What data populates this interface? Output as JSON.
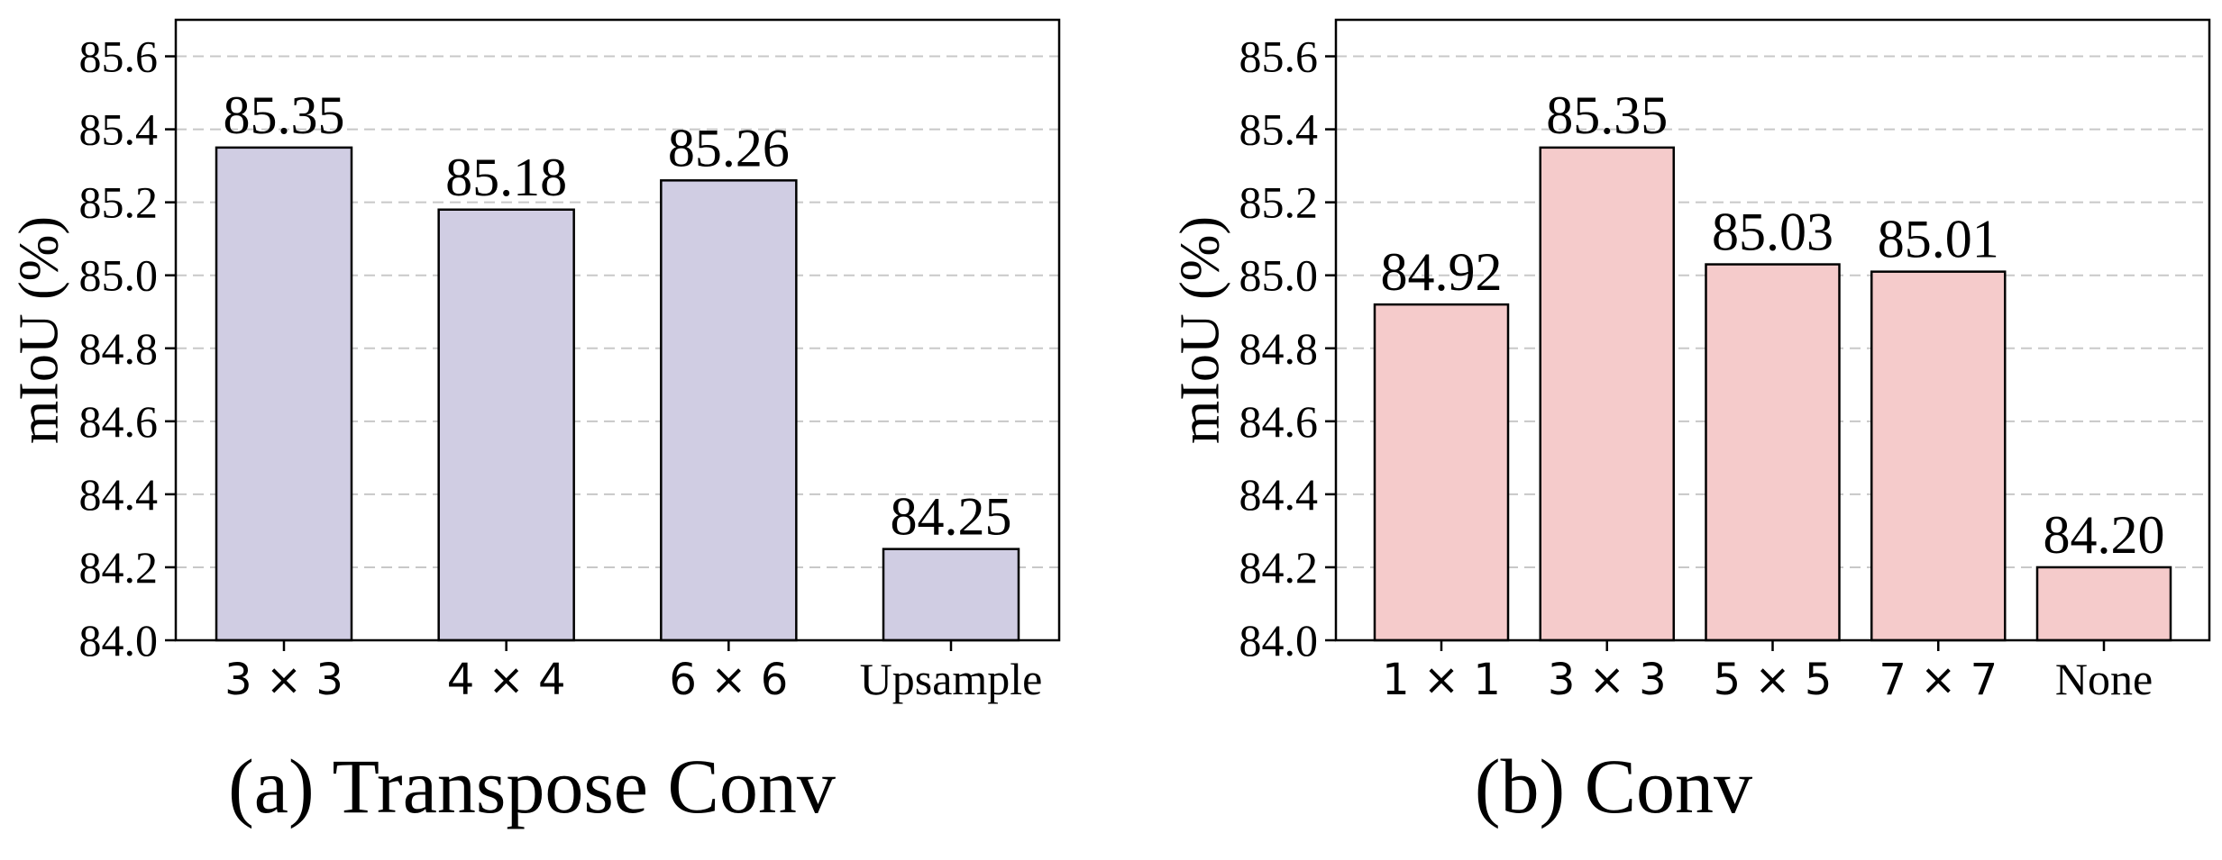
{
  "chart_data": [
    {
      "type": "bar",
      "caption": "(a) Transpose Conv",
      "categories": [
        "3 × 3",
        "4 × 4",
        "6 × 6",
        "Upsample"
      ],
      "values": [
        85.35,
        85.18,
        85.26,
        84.25
      ],
      "value_labels": [
        "85.35",
        "85.18",
        "85.26",
        "84.25"
      ],
      "xlabel": "",
      "ylabel": "mIoU (%)",
      "ylim": [
        84.0,
        85.7
      ],
      "yticks": [
        84.0,
        84.2,
        84.4,
        84.6,
        84.8,
        85.0,
        85.2,
        85.4,
        85.6
      ],
      "ytick_labels": [
        "84.0",
        "84.2",
        "84.4",
        "84.6",
        "84.8",
        "85.0",
        "85.2",
        "85.4",
        "85.6"
      ],
      "bar_color": "#d0cde3",
      "grid": true
    },
    {
      "type": "bar",
      "caption": "(b) Conv",
      "categories": [
        "1 × 1",
        "3 × 3",
        "5 × 5",
        "7 × 7",
        "None"
      ],
      "values": [
        84.92,
        85.35,
        85.03,
        85.01,
        84.2
      ],
      "value_labels": [
        "84.92",
        "85.35",
        "85.03",
        "85.01",
        "84.20"
      ],
      "xlabel": "",
      "ylabel": "mIoU (%)",
      "ylim": [
        84.0,
        85.7
      ],
      "yticks": [
        84.0,
        84.2,
        84.4,
        84.6,
        84.8,
        85.0,
        85.2,
        85.4,
        85.6
      ],
      "ytick_labels": [
        "84.0",
        "84.2",
        "84.4",
        "84.6",
        "84.8",
        "85.0",
        "85.2",
        "85.4",
        "85.6"
      ],
      "bar_color": "#f5cbcb",
      "grid": true
    }
  ]
}
